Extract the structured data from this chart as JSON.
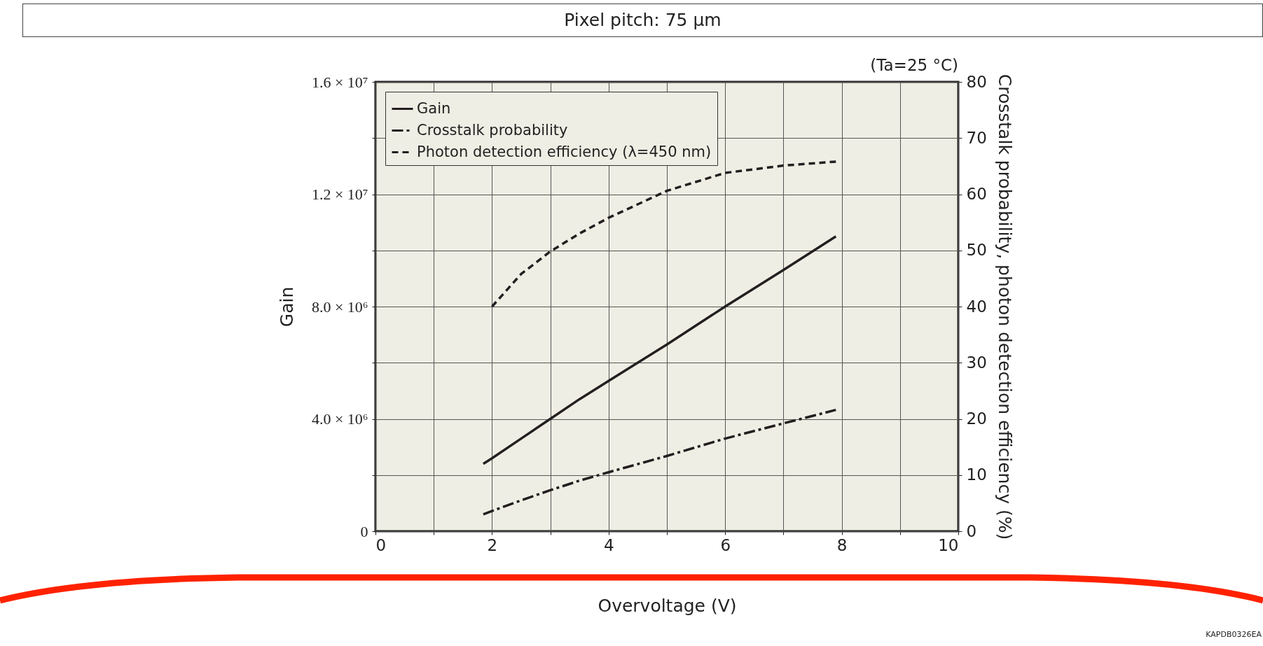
{
  "chart_data": {
    "type": "line",
    "title": "Pixel pitch: 75 µm",
    "xlabel": "Overvoltage (V)",
    "ylabel": "Gain",
    "y2label": "Crosstalk probability, photon detection efficiency (%)",
    "annotations": [
      "(Ta=25 °C)",
      "KAPDB0326EA"
    ],
    "x": [
      1.85,
      2,
      2.5,
      3,
      3.5,
      4,
      5,
      6,
      7,
      7.9
    ],
    "series": [
      {
        "name": "Gain",
        "color": "#231f20",
        "line_style": "solid",
        "values": [
          2400000,
          2600000,
          3300000,
          4000000,
          4700000,
          5350000,
          6650000,
          8000000,
          9300000,
          10500000
        ]
      },
      {
        "name": "Crosstalk probability",
        "color": "#231f20",
        "line_style": "dashdot",
        "axis": "y2",
        "values": [
          3.0,
          3.6,
          5.5,
          7.3,
          9.0,
          10.5,
          13.4,
          16.5,
          19.2,
          21.6
        ]
      },
      {
        "name": "Photon detection efficiency (λ=450 nm)",
        "color": "#231f20",
        "line_style": "dashed",
        "axis": "y2",
        "values": [
          null,
          40,
          45.8,
          49.8,
          53,
          55.8,
          60.6,
          63.8,
          65.1,
          65.8
        ]
      }
    ],
    "xlim": [
      0,
      10
    ],
    "xticks": [
      0,
      {
        "value": 1,
        "label": null
      },
      2,
      {
        "value": 3,
        "label": null
      },
      4,
      {
        "value": 5,
        "label": null
      },
      6,
      {
        "value": 7,
        "label": null
      },
      8,
      {
        "value": 9,
        "label": null
      },
      10
    ],
    "ylim": [
      0,
      16000000
    ],
    "yticks": [
      {
        "value": 0,
        "label": "0"
      },
      {
        "value": 2000000,
        "label": null
      },
      {
        "value": 4000000,
        "label": "4.0 × 10⁶"
      },
      {
        "value": 6000000,
        "label": null
      },
      {
        "value": 8000000,
        "label": "8.0 × 10⁶"
      },
      {
        "value": 10000000,
        "label": null
      },
      {
        "value": 12000000,
        "label": "1.2 × 10⁷"
      },
      {
        "value": 14000000,
        "label": null
      },
      {
        "value": 16000000,
        "label": "1.6 × 10⁷"
      }
    ],
    "y2lim": [
      0,
      80
    ],
    "y2ticks": [
      0,
      10,
      20,
      30,
      40,
      50,
      60,
      70,
      80
    ],
    "grid": true,
    "legend": "top left",
    "marker": "none"
  }
}
